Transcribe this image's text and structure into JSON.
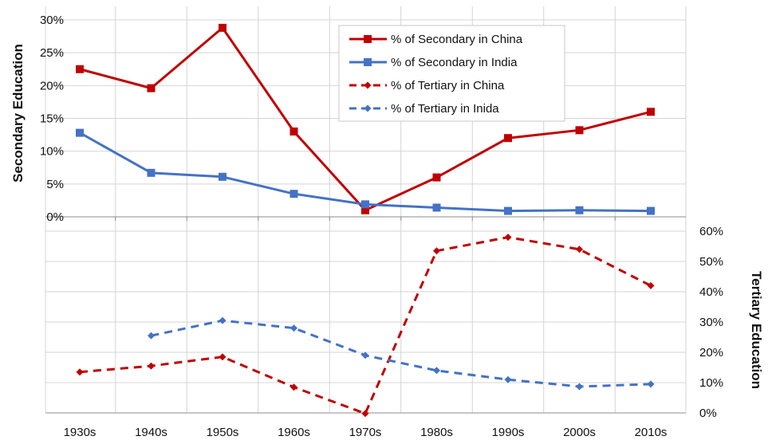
{
  "chart_data": {
    "type": "line",
    "categories": [
      "1930s",
      "1940s",
      "1950s",
      "1960s",
      "1970s",
      "1980s",
      "1990s",
      "2000s",
      "2010s"
    ],
    "left_axis": {
      "label": "Secondary Education",
      "ylim": [
        0,
        30
      ],
      "ticks": [
        "0%",
        "5%",
        "10%",
        "15%",
        "20%",
        "25%",
        "30%"
      ],
      "tick_values": [
        0,
        5,
        10,
        15,
        20,
        25,
        30
      ]
    },
    "right_axis": {
      "label": "Tertiary Education",
      "ylim": [
        0,
        60
      ],
      "ticks": [
        "0%",
        "10%",
        "20%",
        "30%",
        "40%",
        "50%",
        "60%"
      ],
      "tick_values": [
        0,
        10,
        20,
        30,
        40,
        50,
        60
      ]
    },
    "series": [
      {
        "name": "% of Secondary in China",
        "axis": "left",
        "style": "solid",
        "marker": "square",
        "color": "#C00000",
        "values": [
          22.5,
          19.6,
          28.8,
          13.0,
          1.0,
          6.0,
          12.0,
          13.2,
          16.0
        ]
      },
      {
        "name": "% of Secondary in India",
        "axis": "left",
        "style": "solid",
        "marker": "square",
        "color": "#4472C4",
        "values": [
          12.8,
          6.7,
          6.1,
          3.5,
          1.9,
          1.4,
          0.9,
          1.0,
          0.9
        ]
      },
      {
        "name": "% of Tertiary in China",
        "axis": "right",
        "style": "dashed",
        "marker": "diamond",
        "color": "#C00000",
        "values": [
          13.5,
          15.5,
          18.5,
          8.5,
          -0.2,
          53.5,
          58.0,
          54.0,
          42.0
        ]
      },
      {
        "name": "% of Tertiary in Inida",
        "axis": "right",
        "style": "dashed",
        "marker": "diamond",
        "color": "#4472C4",
        "values": [
          null,
          25.5,
          30.5,
          28.0,
          19.0,
          14.0,
          11.0,
          8.7,
          9.5
        ]
      }
    ],
    "grid": true,
    "legend": "top-right"
  }
}
